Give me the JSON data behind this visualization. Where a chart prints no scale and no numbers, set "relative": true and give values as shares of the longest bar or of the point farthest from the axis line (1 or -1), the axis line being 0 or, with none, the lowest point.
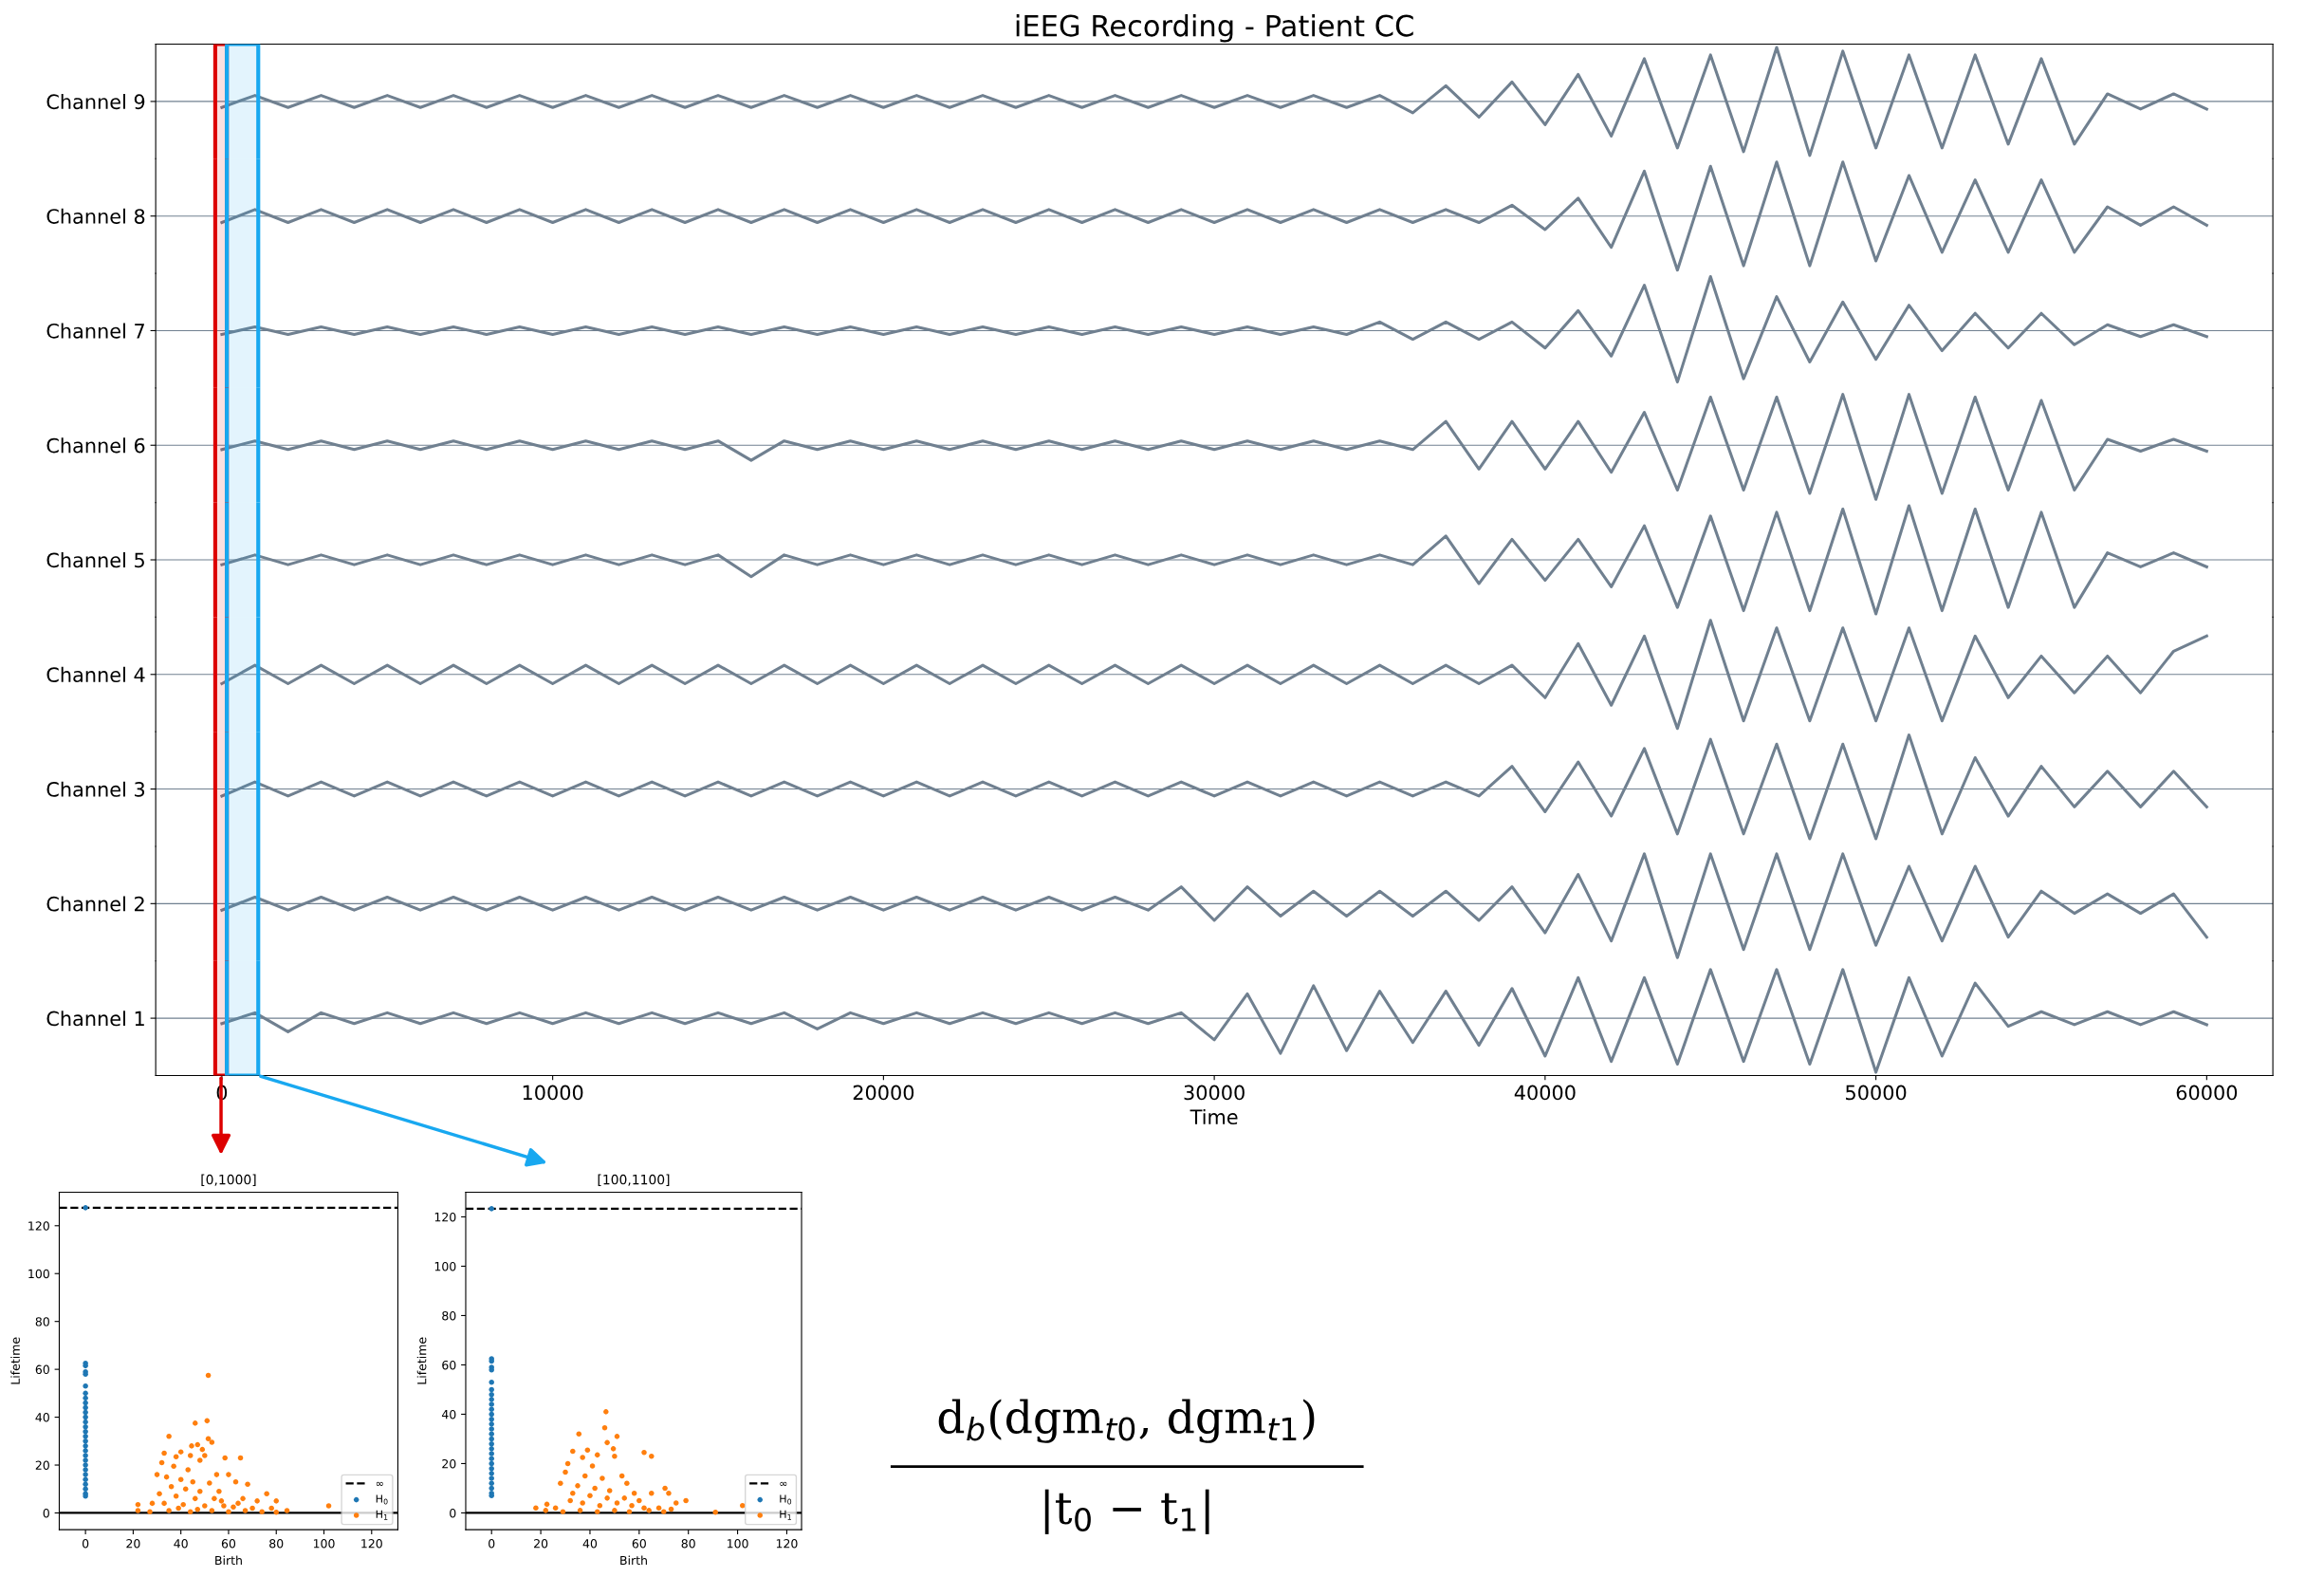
{
  "chart_data": [
    {
      "type": "line",
      "title": "iEEG Recording - Patient CC",
      "ylabel": "Channel 9",
      "relative": true,
      "tick_labels": false,
      "xlim": [
        -2000,
        62000
      ],
      "x": [
        0,
        1000,
        2000,
        3000,
        4000,
        5000,
        6000,
        7000,
        8000,
        9000,
        10000,
        11000,
        12000,
        13000,
        14000,
        15000,
        16000,
        17000,
        18000,
        19000,
        20000,
        21000,
        22000,
        23000,
        24000,
        25000,
        26000,
        27000,
        28000,
        29000,
        30000,
        31000,
        32000,
        33000,
        34000,
        35000,
        36000,
        37000,
        38000,
        39000,
        40000,
        41000,
        42000,
        43000,
        44000,
        45000,
        46000,
        47000,
        48000,
        49000,
        50000,
        51000,
        52000,
        53000,
        54000,
        55000,
        56000,
        57000,
        58000,
        59000,
        60000
      ],
      "series": [
        {
          "color": "#708090",
          "values": [
            -0.11,
            0.11,
            -0.11,
            0.11,
            -0.11,
            0.11,
            -0.11,
            0.11,
            -0.11,
            0.11,
            -0.11,
            0.11,
            -0.11,
            0.11,
            -0.11,
            0.11,
            -0.11,
            0.11,
            -0.11,
            0.11,
            -0.11,
            0.11,
            -0.11,
            0.11,
            -0.11,
            0.11,
            -0.11,
            0.11,
            -0.11,
            0.11,
            -0.11,
            0.11,
            -0.11,
            0.11,
            -0.11,
            0.11,
            -0.21,
            0.29,
            -0.29,
            0.36,
            -0.43,
            0.5,
            -0.64,
            0.79,
            -0.86,
            0.86,
            -0.93,
            1,
            -1,
            0.93,
            -0.86,
            0.86,
            -0.86,
            0.86,
            -0.79,
            0.79,
            -0.79,
            0.14,
            -0.14,
            0.14,
            -0.14
          ]
        }
      ],
      "bands": [
        {
          "axis": "x",
          "from": -200,
          "to": 150,
          "color": "#dd0000"
        },
        {
          "axis": "x",
          "from": 150,
          "to": 1100,
          "color": "#18a8f0"
        }
      ]
    },
    {
      "type": "line",
      "ylabel": "Channel 8",
      "relative": true,
      "tick_labels": false,
      "xlim": [
        -2000,
        62000
      ],
      "x": [
        0,
        1000,
        2000,
        3000,
        4000,
        5000,
        6000,
        7000,
        8000,
        9000,
        10000,
        11000,
        12000,
        13000,
        14000,
        15000,
        16000,
        17000,
        18000,
        19000,
        20000,
        21000,
        22000,
        23000,
        24000,
        25000,
        26000,
        27000,
        28000,
        29000,
        30000,
        31000,
        32000,
        33000,
        34000,
        35000,
        36000,
        37000,
        38000,
        39000,
        40000,
        41000,
        42000,
        43000,
        44000,
        45000,
        46000,
        47000,
        48000,
        49000,
        50000,
        51000,
        52000,
        53000,
        54000,
        55000,
        56000,
        57000,
        58000,
        59000,
        60000
      ],
      "series": [
        {
          "color": "#708090",
          "values": [
            -0.12,
            0.12,
            -0.12,
            0.12,
            -0.12,
            0.12,
            -0.12,
            0.12,
            -0.12,
            0.12,
            -0.12,
            0.12,
            -0.12,
            0.12,
            -0.12,
            0.12,
            -0.12,
            0.12,
            -0.12,
            0.12,
            -0.12,
            0.12,
            -0.12,
            0.12,
            -0.12,
            0.12,
            -0.12,
            0.12,
            -0.12,
            0.12,
            -0.12,
            0.12,
            -0.12,
            0.12,
            -0.12,
            0.12,
            -0.12,
            0.12,
            -0.12,
            0.2,
            -0.25,
            0.33,
            -0.58,
            0.83,
            -1,
            0.92,
            -0.92,
            1,
            -0.92,
            1,
            -0.83,
            0.75,
            -0.67,
            0.67,
            -0.67,
            0.67,
            -0.67,
            0.17,
            -0.17,
            0.17,
            -0.17
          ]
        }
      ],
      "bands": [
        {
          "axis": "x",
          "from": -200,
          "to": 150,
          "color": "#dd0000"
        },
        {
          "axis": "x",
          "from": 150,
          "to": 1100,
          "color": "#18a8f0"
        }
      ]
    },
    {
      "type": "line",
      "ylabel": "Channel 7",
      "relative": true,
      "tick_labels": false,
      "xlim": [
        -2000,
        62000
      ],
      "x": [
        0,
        1000,
        2000,
        3000,
        4000,
        5000,
        6000,
        7000,
        8000,
        9000,
        10000,
        11000,
        12000,
        13000,
        14000,
        15000,
        16000,
        17000,
        18000,
        19000,
        20000,
        21000,
        22000,
        23000,
        24000,
        25000,
        26000,
        27000,
        28000,
        29000,
        30000,
        31000,
        32000,
        33000,
        34000,
        35000,
        36000,
        37000,
        38000,
        39000,
        40000,
        41000,
        42000,
        43000,
        44000,
        45000,
        46000,
        47000,
        48000,
        49000,
        50000,
        51000,
        52000,
        53000,
        54000,
        55000,
        56000,
        57000,
        58000,
        59000,
        60000
      ],
      "series": [
        {
          "color": "#708090",
          "values": [
            -0.07,
            0.07,
            -0.07,
            0.07,
            -0.07,
            0.07,
            -0.07,
            0.07,
            -0.07,
            0.07,
            -0.07,
            0.07,
            -0.07,
            0.07,
            -0.07,
            0.07,
            -0.07,
            0.07,
            -0.07,
            0.07,
            -0.07,
            0.07,
            -0.07,
            0.07,
            -0.07,
            0.07,
            -0.07,
            0.07,
            -0.07,
            0.07,
            -0.07,
            0.07,
            -0.07,
            0.07,
            -0.07,
            0.16,
            -0.16,
            0.16,
            -0.16,
            0.16,
            -0.32,
            0.37,
            -0.47,
            0.84,
            -0.95,
            1,
            -0.89,
            0.63,
            -0.58,
            0.53,
            -0.53,
            0.47,
            -0.37,
            0.32,
            -0.32,
            0.32,
            -0.26,
            0.11,
            -0.11,
            0.11,
            -0.11
          ]
        }
      ],
      "bands": [
        {
          "axis": "x",
          "from": -200,
          "to": 150,
          "color": "#dd0000"
        },
        {
          "axis": "x",
          "from": 150,
          "to": 1100,
          "color": "#18a8f0"
        }
      ]
    },
    {
      "type": "line",
      "ylabel": "Channel 6",
      "relative": true,
      "tick_labels": false,
      "xlim": [
        -2000,
        62000
      ],
      "x": [
        0,
        1000,
        2000,
        3000,
        4000,
        5000,
        6000,
        7000,
        8000,
        9000,
        10000,
        11000,
        12000,
        13000,
        14000,
        15000,
        16000,
        17000,
        18000,
        19000,
        20000,
        21000,
        22000,
        23000,
        24000,
        25000,
        26000,
        27000,
        28000,
        29000,
        30000,
        31000,
        32000,
        33000,
        34000,
        35000,
        36000,
        37000,
        38000,
        39000,
        40000,
        41000,
        42000,
        43000,
        44000,
        45000,
        46000,
        47000,
        48000,
        49000,
        50000,
        51000,
        52000,
        53000,
        54000,
        55000,
        56000,
        57000,
        58000,
        59000,
        60000
      ],
      "series": [
        {
          "color": "#708090",
          "values": [
            -0.08,
            0.08,
            -0.08,
            0.08,
            -0.08,
            0.08,
            -0.08,
            0.08,
            -0.08,
            0.08,
            -0.08,
            0.08,
            -0.08,
            0.08,
            -0.08,
            0.08,
            -0.28,
            0.08,
            -0.08,
            0.08,
            -0.08,
            0.08,
            -0.08,
            0.08,
            -0.08,
            0.08,
            -0.08,
            0.08,
            -0.08,
            0.08,
            -0.08,
            0.08,
            -0.08,
            0.08,
            -0.08,
            0.08,
            -0.08,
            0.44,
            -0.44,
            0.44,
            -0.44,
            0.44,
            -0.5,
            0.61,
            -0.83,
            0.89,
            -0.83,
            0.89,
            -0.89,
            0.94,
            -1,
            0.94,
            -0.89,
            0.89,
            -0.83,
            0.83,
            -0.83,
            0.11,
            -0.11,
            0.11,
            -0.11
          ]
        }
      ],
      "bands": [
        {
          "axis": "x",
          "from": -200,
          "to": 150,
          "color": "#dd0000"
        },
        {
          "axis": "x",
          "from": 150,
          "to": 1100,
          "color": "#18a8f0"
        }
      ]
    },
    {
      "type": "line",
      "ylabel": "Channel 5",
      "relative": true,
      "tick_labels": false,
      "xlim": [
        -2000,
        62000
      ],
      "x": [
        0,
        1000,
        2000,
        3000,
        4000,
        5000,
        6000,
        7000,
        8000,
        9000,
        10000,
        11000,
        12000,
        13000,
        14000,
        15000,
        16000,
        17000,
        18000,
        19000,
        20000,
        21000,
        22000,
        23000,
        24000,
        25000,
        26000,
        27000,
        28000,
        29000,
        30000,
        31000,
        32000,
        33000,
        34000,
        35000,
        36000,
        37000,
        38000,
        39000,
        40000,
        41000,
        42000,
        43000,
        44000,
        45000,
        46000,
        47000,
        48000,
        49000,
        50000,
        51000,
        52000,
        53000,
        54000,
        55000,
        56000,
        57000,
        58000,
        59000,
        60000
      ],
      "series": [
        {
          "color": "#708090",
          "values": [
            -0.09,
            0.09,
            -0.09,
            0.09,
            -0.09,
            0.09,
            -0.09,
            0.09,
            -0.09,
            0.09,
            -0.09,
            0.09,
            -0.09,
            0.09,
            -0.09,
            0.09,
            -0.31,
            0.09,
            -0.09,
            0.09,
            -0.09,
            0.09,
            -0.09,
            0.09,
            -0.09,
            0.09,
            -0.09,
            0.09,
            -0.09,
            0.09,
            -0.09,
            0.09,
            -0.09,
            0.09,
            -0.09,
            0.09,
            -0.09,
            0.44,
            -0.44,
            0.38,
            -0.38,
            0.38,
            -0.5,
            0.63,
            -0.88,
            0.81,
            -0.94,
            0.88,
            -0.94,
            0.94,
            -1,
            1,
            -0.94,
            0.94,
            -0.88,
            0.88,
            -0.88,
            0.13,
            -0.13,
            0.13,
            -0.13
          ]
        }
      ],
      "bands": [
        {
          "axis": "x",
          "from": -200,
          "to": 150,
          "color": "#dd0000"
        },
        {
          "axis": "x",
          "from": 150,
          "to": 1100,
          "color": "#18a8f0"
        }
      ]
    },
    {
      "type": "line",
      "ylabel": "Channel 4",
      "relative": true,
      "tick_labels": false,
      "xlim": [
        -2000,
        62000
      ],
      "x": [
        0,
        1000,
        2000,
        3000,
        4000,
        5000,
        6000,
        7000,
        8000,
        9000,
        10000,
        11000,
        12000,
        13000,
        14000,
        15000,
        16000,
        17000,
        18000,
        19000,
        20000,
        21000,
        22000,
        23000,
        24000,
        25000,
        26000,
        27000,
        28000,
        29000,
        30000,
        31000,
        32000,
        33000,
        34000,
        35000,
        36000,
        37000,
        38000,
        39000,
        40000,
        41000,
        42000,
        43000,
        44000,
        45000,
        46000,
        47000,
        48000,
        49000,
        50000,
        51000,
        52000,
        53000,
        54000,
        55000,
        56000,
        57000,
        58000,
        59000,
        60000
      ],
      "series": [
        {
          "color": "#708090",
          "values": [
            -0.17,
            0.17,
            -0.17,
            0.17,
            -0.17,
            0.17,
            -0.17,
            0.17,
            -0.17,
            0.17,
            -0.17,
            0.17,
            -0.17,
            0.17,
            -0.17,
            0.17,
            -0.17,
            0.17,
            -0.17,
            0.17,
            -0.17,
            0.17,
            -0.17,
            0.17,
            -0.17,
            0.17,
            -0.17,
            0.17,
            -0.17,
            0.17,
            -0.17,
            0.17,
            -0.17,
            0.17,
            -0.17,
            0.17,
            -0.17,
            0.17,
            -0.17,
            0.17,
            -0.43,
            0.57,
            -0.57,
            0.71,
            -1,
            1,
            -0.86,
            0.86,
            -0.86,
            0.86,
            -0.86,
            0.86,
            -0.86,
            0.71,
            -0.43,
            0.34,
            -0.34,
            0.34,
            -0.34,
            0.43,
            0.71
          ]
        }
      ],
      "bands": [
        {
          "axis": "x",
          "from": -200,
          "to": 150,
          "color": "#dd0000"
        },
        {
          "axis": "x",
          "from": 150,
          "to": 1100,
          "color": "#18a8f0"
        }
      ]
    },
    {
      "type": "line",
      "ylabel": "Channel 3",
      "relative": true,
      "tick_labels": false,
      "xlim": [
        -2000,
        62000
      ],
      "x": [
        0,
        1000,
        2000,
        3000,
        4000,
        5000,
        6000,
        7000,
        8000,
        9000,
        10000,
        11000,
        12000,
        13000,
        14000,
        15000,
        16000,
        17000,
        18000,
        19000,
        20000,
        21000,
        22000,
        23000,
        24000,
        25000,
        26000,
        27000,
        28000,
        29000,
        30000,
        31000,
        32000,
        33000,
        34000,
        35000,
        36000,
        37000,
        38000,
        39000,
        40000,
        41000,
        42000,
        43000,
        44000,
        45000,
        46000,
        47000,
        48000,
        49000,
        50000,
        51000,
        52000,
        53000,
        54000,
        55000,
        56000,
        57000,
        58000,
        59000,
        60000
      ],
      "series": [
        {
          "color": "#708090",
          "values": [
            -0.13,
            0.13,
            -0.13,
            0.13,
            -0.13,
            0.13,
            -0.13,
            0.13,
            -0.13,
            0.13,
            -0.13,
            0.13,
            -0.13,
            0.13,
            -0.13,
            0.13,
            -0.13,
            0.13,
            -0.13,
            0.13,
            -0.13,
            0.13,
            -0.13,
            0.13,
            -0.13,
            0.13,
            -0.13,
            0.13,
            -0.13,
            0.13,
            -0.13,
            0.13,
            -0.13,
            0.13,
            -0.13,
            0.13,
            -0.13,
            0.13,
            -0.13,
            0.42,
            -0.42,
            0.5,
            -0.5,
            0.75,
            -0.83,
            0.92,
            -0.83,
            0.83,
            -0.92,
            0.83,
            -0.92,
            1,
            -0.83,
            0.58,
            -0.5,
            0.42,
            -0.33,
            0.33,
            -0.33,
            0.33,
            -0.33
          ]
        }
      ],
      "bands": [
        {
          "axis": "x",
          "from": -200,
          "to": 150,
          "color": "#dd0000"
        },
        {
          "axis": "x",
          "from": 150,
          "to": 1100,
          "color": "#18a8f0"
        }
      ]
    },
    {
      "type": "line",
      "ylabel": "Channel 2",
      "relative": true,
      "tick_labels": false,
      "xlim": [
        -2000,
        62000
      ],
      "x": [
        0,
        1000,
        2000,
        3000,
        4000,
        5000,
        6000,
        7000,
        8000,
        9000,
        10000,
        11000,
        12000,
        13000,
        14000,
        15000,
        16000,
        17000,
        18000,
        19000,
        20000,
        21000,
        22000,
        23000,
        24000,
        25000,
        26000,
        27000,
        28000,
        29000,
        30000,
        31000,
        32000,
        33000,
        34000,
        35000,
        36000,
        37000,
        38000,
        39000,
        40000,
        41000,
        42000,
        43000,
        44000,
        45000,
        46000,
        47000,
        48000,
        49000,
        50000,
        51000,
        52000,
        53000,
        54000,
        55000,
        56000,
        57000,
        58000,
        59000,
        60000
      ],
      "series": [
        {
          "color": "#708090",
          "values": [
            -0.12,
            0.12,
            -0.12,
            0.12,
            -0.12,
            0.12,
            -0.12,
            0.12,
            -0.12,
            0.12,
            -0.12,
            0.12,
            -0.12,
            0.12,
            -0.12,
            0.12,
            -0.12,
            0.12,
            -0.12,
            0.12,
            -0.12,
            0.12,
            -0.12,
            0.12,
            -0.12,
            0.12,
            -0.12,
            0.12,
            -0.12,
            0.31,
            -0.31,
            0.31,
            -0.23,
            0.23,
            -0.23,
            0.23,
            -0.23,
            0.23,
            -0.31,
            0.31,
            -0.54,
            0.54,
            -0.69,
            0.92,
            -1,
            0.92,
            -0.85,
            0.92,
            -0.85,
            0.92,
            -0.77,
            0.69,
            -0.69,
            0.69,
            -0.62,
            0.23,
            -0.18,
            0.18,
            -0.18,
            0.18,
            -0.62
          ]
        }
      ],
      "bands": [
        {
          "axis": "x",
          "from": -200,
          "to": 150,
          "color": "#dd0000"
        },
        {
          "axis": "x",
          "from": 150,
          "to": 1100,
          "color": "#18a8f0"
        }
      ]
    },
    {
      "type": "line",
      "ylabel": "Channel 1",
      "xlabel": "Time",
      "relative": true,
      "tick_labels": "x",
      "xlim": [
        -2000,
        62000
      ],
      "xticks": [
        0,
        10000,
        20000,
        30000,
        40000,
        50000,
        60000
      ],
      "x": [
        0,
        1000,
        2000,
        3000,
        4000,
        5000,
        6000,
        7000,
        8000,
        9000,
        10000,
        11000,
        12000,
        13000,
        14000,
        15000,
        16000,
        17000,
        18000,
        19000,
        20000,
        21000,
        22000,
        23000,
        24000,
        25000,
        26000,
        27000,
        28000,
        29000,
        30000,
        31000,
        32000,
        33000,
        34000,
        35000,
        36000,
        37000,
        38000,
        39000,
        40000,
        41000,
        42000,
        43000,
        44000,
        45000,
        46000,
        47000,
        48000,
        49000,
        50000,
        51000,
        52000,
        53000,
        54000,
        55000,
        56000,
        57000,
        58000,
        59000,
        60000
      ],
      "series": [
        {
          "color": "#708090",
          "values": [
            -0.1,
            0.1,
            -0.25,
            0.1,
            -0.1,
            0.1,
            -0.1,
            0.1,
            -0.1,
            0.1,
            -0.1,
            0.1,
            -0.1,
            0.1,
            -0.1,
            0.1,
            -0.1,
            0.1,
            -0.2,
            0.1,
            -0.1,
            0.1,
            -0.1,
            0.1,
            -0.1,
            0.1,
            -0.1,
            0.1,
            -0.1,
            0.1,
            -0.4,
            0.45,
            -0.65,
            0.6,
            -0.6,
            0.5,
            -0.45,
            0.5,
            -0.5,
            0.55,
            -0.7,
            0.75,
            -0.8,
            0.75,
            -0.85,
            0.9,
            -0.8,
            0.9,
            -0.85,
            0.9,
            -1,
            0.75,
            -0.7,
            0.65,
            -0.15,
            0.12,
            -0.12,
            0.12,
            -0.12,
            0.12,
            -0.12
          ]
        }
      ],
      "bands": [
        {
          "axis": "x",
          "from": -200,
          "to": 150,
          "color": "#dd0000"
        },
        {
          "axis": "x",
          "from": 150,
          "to": 1100,
          "color": "#18a8f0"
        }
      ]
    },
    {
      "type": "scatter",
      "title": "[0,1000]",
      "xlabel": "Birth",
      "ylabel": "Lifetime",
      "marker": "circle",
      "legend": "bottom right",
      "xlim": [
        -11,
        131
      ],
      "ylim": [
        -7,
        134
      ],
      "xticks": [
        0,
        20,
        40,
        60,
        80,
        100,
        120
      ],
      "yticks": [
        0,
        20,
        40,
        60,
        80,
        100,
        120
      ],
      "series": [
        {
          "name": "H$_{0}$",
          "color": "#1f77b4",
          "x": [
            0,
            0,
            0,
            0,
            0,
            0,
            0,
            0,
            0,
            0,
            0,
            0,
            0,
            0,
            0,
            0,
            0,
            0,
            0,
            0,
            0,
            0,
            0,
            0,
            0,
            0,
            0,
            0,
            0
          ],
          "values": [
            127.5,
            62.5,
            61.5,
            59,
            58,
            53,
            50,
            48,
            46,
            44,
            42,
            40,
            38,
            36,
            34,
            32,
            30,
            28,
            26,
            24,
            22,
            20,
            18,
            16,
            14,
            12,
            10,
            8,
            7
          ]
        },
        {
          "name": "H$_{1}$",
          "color": "#ff7f0e",
          "x": [
            51.5,
            46,
            51,
            35,
            51.5,
            53,
            47,
            44.5,
            49,
            40,
            33,
            58.5,
            65,
            44,
            50,
            38,
            48,
            32,
            37,
            43,
            30,
            55,
            60,
            34,
            40,
            45,
            52,
            63,
            68,
            36,
            42,
            48,
            56,
            76,
            31,
            38,
            46,
            54,
            66,
            72,
            80,
            28,
            22,
            33,
            41,
            50,
            58,
            62,
            70,
            78,
            84.5,
            102,
            22,
            27,
            35,
            44,
            53,
            60,
            67,
            74,
            80,
            39,
            47,
            57,
            64
          ],
          "values": [
            57.5,
            37.5,
            38.5,
            32,
            31,
            29.5,
            28.5,
            28,
            26.5,
            25.5,
            25,
            23,
            23,
            24,
            24,
            23.5,
            22,
            21,
            19.5,
            18,
            16,
            16,
            16,
            15,
            14,
            13,
            12.5,
            13,
            12,
            11,
            10,
            9,
            9,
            8,
            8,
            7,
            6,
            6,
            6,
            5,
            5,
            4,
            3.5,
            4,
            3.5,
            3,
            3,
            2.5,
            2,
            2,
            1,
            3,
            1,
            0.5,
            1,
            0.5,
            1,
            0.5,
            1,
            0.5,
            0.3,
            2,
            1.5,
            5,
            4
          ]
        }
      ],
      "ref_lines": [
        {
          "axis": "y",
          "value": 127.5,
          "label": "∞",
          "color": "#000000",
          "line_style": "dashed"
        },
        {
          "axis": "y",
          "value": 0,
          "color": "#000000",
          "line_style": "solid"
        }
      ]
    },
    {
      "type": "scatter",
      "title": "[100,1100]",
      "xlabel": "Birth",
      "ylabel": "Lifetime",
      "marker": "circle",
      "legend": "bottom right",
      "xlim": [
        -10.5,
        126
      ],
      "ylim": [
        -6.8,
        130
      ],
      "xticks": [
        0,
        20,
        40,
        60,
        80,
        100,
        120
      ],
      "yticks": [
        0,
        20,
        40,
        60,
        80,
        100,
        120
      ],
      "series": [
        {
          "name": "H$_{0}$",
          "color": "#1f77b4",
          "x": [
            0,
            0,
            0,
            0,
            0,
            0,
            0,
            0,
            0,
            0,
            0,
            0,
            0,
            0,
            0,
            0,
            0,
            0,
            0,
            0,
            0,
            0,
            0,
            0,
            0,
            0,
            0,
            0,
            0
          ],
          "values": [
            123.3,
            62.5,
            61.5,
            59,
            58,
            53,
            50,
            48,
            46,
            44,
            42,
            40,
            38,
            36,
            34,
            32,
            30,
            28,
            26,
            24,
            22,
            20,
            18,
            16,
            14,
            12,
            10,
            8,
            7
          ]
        },
        {
          "name": "H$_{1}$",
          "color": "#ff7f0e",
          "x": [
            46.5,
            46,
            35.5,
            51,
            47,
            49.5,
            33,
            39,
            62,
            65,
            43,
            37,
            50,
            31,
            41,
            30,
            38,
            45,
            53,
            55,
            28,
            35,
            42,
            48,
            58,
            70.5,
            72,
            65,
            79,
            75,
            22.5,
            18,
            26,
            32,
            37,
            44,
            51,
            57,
            62,
            68,
            73,
            91,
            102,
            22,
            29,
            36,
            43,
            50,
            56,
            64,
            70,
            40,
            47,
            54,
            60,
            33
          ],
          "values": [
            41,
            34.5,
            32,
            31,
            28.5,
            26,
            25,
            25.5,
            24.5,
            23,
            23.5,
            22.5,
            23,
            20,
            19,
            16.5,
            15,
            14,
            15,
            12,
            12,
            11,
            10,
            9,
            8,
            10,
            8,
            8,
            5,
            4,
            3.5,
            2,
            2,
            5,
            4,
            3,
            4,
            3,
            2,
            2,
            1.5,
            0.3,
            3,
            1,
            0.5,
            1,
            0.5,
            1,
            0.5,
            1,
            0.5,
            7,
            6,
            6,
            5,
            8
          ]
        }
      ],
      "ref_lines": [
        {
          "axis": "y",
          "value": 123.3,
          "label": "∞",
          "color": "#000000",
          "line_style": "dashed"
        },
        {
          "axis": "y",
          "value": 0,
          "color": "#000000",
          "line_style": "solid"
        }
      ]
    },
    {
      "type": "other",
      "annotations": [
        "d$_{b}$(dgm$_{t0}$, dgm$_{t1}$)",
        "|t$_{0}$ − t$_{1}$|"
      ]
    }
  ]
}
